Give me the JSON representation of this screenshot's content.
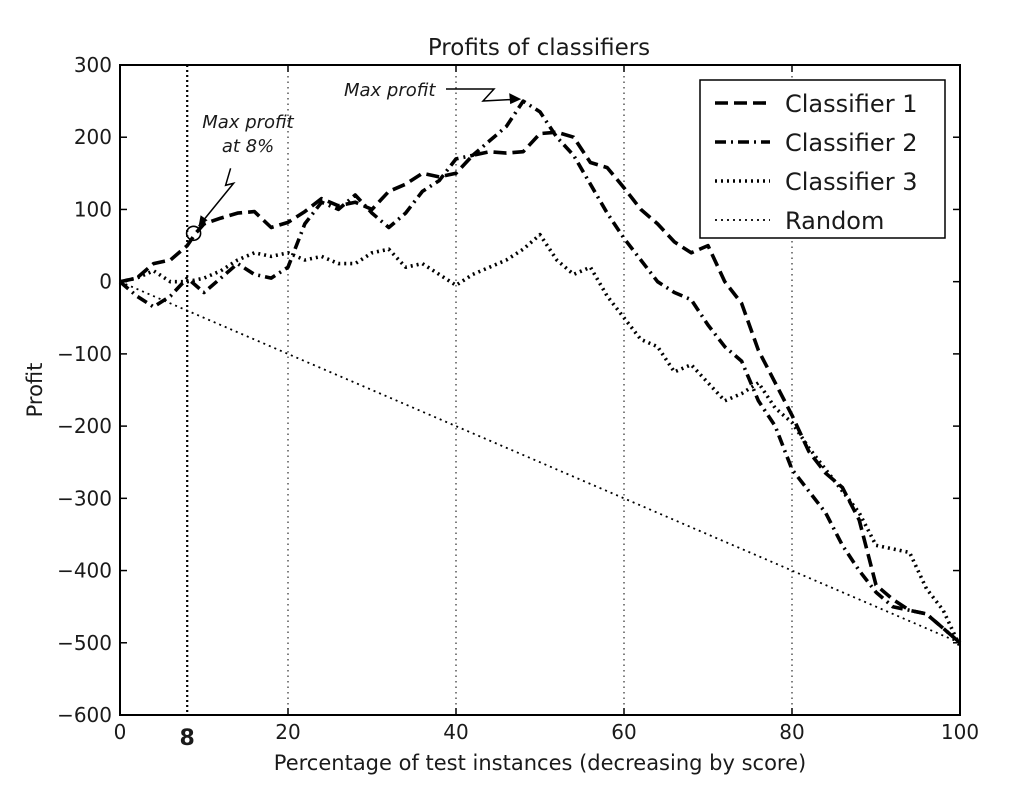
{
  "chart_data": {
    "type": "line",
    "title": "Profits of classifiers",
    "xlabel": "Percentage of test instances (decreasing by score)",
    "ylabel": "Profit",
    "xlim": [
      0,
      100
    ],
    "ylim": [
      -600,
      300
    ],
    "x_ticks": [
      0,
      20,
      40,
      60,
      80,
      100
    ],
    "y_ticks": [
      300,
      200,
      100,
      0,
      -100,
      -200,
      -300,
      -400,
      -500,
      -600
    ],
    "x_tick_labels": [
      "0",
      "20",
      "40",
      "60",
      "80",
      "100"
    ],
    "y_tick_labels": [
      "300",
      "200",
      "100",
      "0",
      "−100",
      "−200",
      "−300",
      "−400",
      "−500",
      "−600"
    ],
    "vertical_gridlines_at": [
      20,
      40,
      60,
      80
    ],
    "grid": "vertical dotted",
    "legend_position": "top-right",
    "special_marker": {
      "x": 8,
      "label": "8"
    },
    "annotations": [
      {
        "text_lines": [
          "Max profit",
          "at 8%"
        ],
        "x": 9,
        "y": 67
      },
      {
        "text_lines": [
          "Max profit"
        ],
        "x": 48,
        "y": 250
      }
    ],
    "series": [
      {
        "name": "Classifier 1",
        "style": "dashed",
        "points": [
          [
            0,
            0
          ],
          [
            2,
            5
          ],
          [
            4,
            25
          ],
          [
            6,
            30
          ],
          [
            8,
            50
          ],
          [
            9,
            67
          ],
          [
            10,
            80
          ],
          [
            12,
            88
          ],
          [
            14,
            95
          ],
          [
            16,
            97
          ],
          [
            18,
            75
          ],
          [
            20,
            82
          ],
          [
            22,
            97
          ],
          [
            24,
            115
          ],
          [
            26,
            105
          ],
          [
            28,
            110
          ],
          [
            30,
            100
          ],
          [
            32,
            125
          ],
          [
            34,
            135
          ],
          [
            36,
            150
          ],
          [
            38,
            145
          ],
          [
            40,
            150
          ],
          [
            42,
            175
          ],
          [
            44,
            180
          ],
          [
            46,
            178
          ],
          [
            48,
            180
          ],
          [
            50,
            205
          ],
          [
            52,
            207
          ],
          [
            54,
            200
          ],
          [
            56,
            165
          ],
          [
            58,
            158
          ],
          [
            60,
            130
          ],
          [
            62,
            100
          ],
          [
            64,
            80
          ],
          [
            66,
            55
          ],
          [
            68,
            40
          ],
          [
            70,
            50
          ],
          [
            72,
            0
          ],
          [
            74,
            -30
          ],
          [
            76,
            -95
          ],
          [
            78,
            -140
          ],
          [
            80,
            -185
          ],
          [
            82,
            -235
          ],
          [
            84,
            -265
          ],
          [
            86,
            -285
          ],
          [
            88,
            -330
          ],
          [
            90,
            -420
          ],
          [
            92,
            -440
          ],
          [
            94,
            -455
          ],
          [
            96,
            -460
          ],
          [
            98,
            -480
          ],
          [
            100,
            -500
          ]
        ]
      },
      {
        "name": "Classifier 2",
        "style": "dashdot",
        "points": [
          [
            0,
            0
          ],
          [
            2,
            -20
          ],
          [
            4,
            -35
          ],
          [
            6,
            -20
          ],
          [
            8,
            5
          ],
          [
            10,
            -15
          ],
          [
            12,
            5
          ],
          [
            14,
            25
          ],
          [
            16,
            10
          ],
          [
            18,
            5
          ],
          [
            20,
            20
          ],
          [
            22,
            80
          ],
          [
            24,
            110
          ],
          [
            26,
            100
          ],
          [
            28,
            120
          ],
          [
            30,
            95
          ],
          [
            32,
            75
          ],
          [
            34,
            95
          ],
          [
            36,
            125
          ],
          [
            38,
            140
          ],
          [
            40,
            170
          ],
          [
            42,
            175
          ],
          [
            44,
            195
          ],
          [
            46,
            215
          ],
          [
            48,
            250
          ],
          [
            50,
            235
          ],
          [
            52,
            200
          ],
          [
            54,
            175
          ],
          [
            56,
            135
          ],
          [
            58,
            95
          ],
          [
            60,
            60
          ],
          [
            62,
            30
          ],
          [
            64,
            0
          ],
          [
            66,
            -15
          ],
          [
            68,
            -25
          ],
          [
            70,
            -60
          ],
          [
            72,
            -90
          ],
          [
            74,
            -110
          ],
          [
            76,
            -165
          ],
          [
            78,
            -200
          ],
          [
            80,
            -260
          ],
          [
            82,
            -290
          ],
          [
            84,
            -320
          ],
          [
            86,
            -365
          ],
          [
            88,
            -400
          ],
          [
            90,
            -430
          ],
          [
            92,
            -450
          ],
          [
            94,
            -455
          ],
          [
            96,
            -460
          ],
          [
            98,
            -480
          ],
          [
            100,
            -500
          ]
        ]
      },
      {
        "name": "Classifier 3",
        "style": "dotted",
        "points": [
          [
            0,
            0
          ],
          [
            2,
            5
          ],
          [
            4,
            15
          ],
          [
            6,
            0
          ],
          [
            8,
            0
          ],
          [
            10,
            5
          ],
          [
            12,
            15
          ],
          [
            14,
            30
          ],
          [
            16,
            40
          ],
          [
            18,
            35
          ],
          [
            20,
            40
          ],
          [
            22,
            30
          ],
          [
            24,
            35
          ],
          [
            26,
            25
          ],
          [
            28,
            25
          ],
          [
            30,
            40
          ],
          [
            32,
            45
          ],
          [
            34,
            20
          ],
          [
            36,
            25
          ],
          [
            38,
            10
          ],
          [
            40,
            -5
          ],
          [
            42,
            10
          ],
          [
            44,
            20
          ],
          [
            46,
            30
          ],
          [
            48,
            45
          ],
          [
            50,
            65
          ],
          [
            52,
            30
          ],
          [
            54,
            10
          ],
          [
            56,
            20
          ],
          [
            58,
            -20
          ],
          [
            60,
            -50
          ],
          [
            62,
            -80
          ],
          [
            64,
            -90
          ],
          [
            66,
            -125
          ],
          [
            68,
            -115
          ],
          [
            70,
            -140
          ],
          [
            72,
            -165
          ],
          [
            74,
            -155
          ],
          [
            76,
            -140
          ],
          [
            78,
            -175
          ],
          [
            80,
            -195
          ],
          [
            82,
            -230
          ],
          [
            84,
            -260
          ],
          [
            86,
            -290
          ],
          [
            88,
            -320
          ],
          [
            90,
            -365
          ],
          [
            92,
            -370
          ],
          [
            94,
            -375
          ],
          [
            96,
            -425
          ],
          [
            98,
            -455
          ],
          [
            100,
            -505
          ]
        ]
      },
      {
        "name": "Random",
        "style": "sparse-dotted",
        "points": [
          [
            0,
            0
          ],
          [
            100,
            -500
          ]
        ]
      }
    ]
  }
}
